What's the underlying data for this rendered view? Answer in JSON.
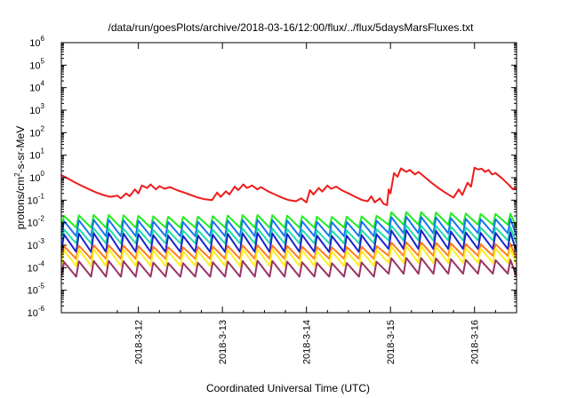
{
  "chart_data": {
    "type": "line",
    "title": "/data/run/goesPlots/archive/2018-03-16/12:00/flux/../flux/5daysMarsFluxes.txt",
    "xlabel": "Coordinated Universal Time (UTC)",
    "ylabel": {
      "main": "protons/cm",
      "sup": "2",
      "rest": "-s-sr-MeV"
    },
    "y_scale": "log",
    "ylim": [
      1e-06,
      1000000.0
    ],
    "y_ticks": [
      {
        "value": 1e-06,
        "base": "10",
        "exp": "-6"
      },
      {
        "value": 1e-05,
        "base": "10",
        "exp": "-5"
      },
      {
        "value": 0.0001,
        "base": "10",
        "exp": "-4"
      },
      {
        "value": 0.001,
        "base": "10",
        "exp": "-3"
      },
      {
        "value": 0.01,
        "base": "10",
        "exp": "-2"
      },
      {
        "value": 0.1,
        "base": "10",
        "exp": "-1"
      },
      {
        "value": 1.0,
        "base": "10",
        "exp": "0"
      },
      {
        "value": 10.0,
        "base": "10",
        "exp": "1"
      },
      {
        "value": 100.0,
        "base": "10",
        "exp": "2"
      },
      {
        "value": 1000.0,
        "base": "10",
        "exp": "3"
      },
      {
        "value": 10000.0,
        "base": "10",
        "exp": "4"
      },
      {
        "value": 100000.0,
        "base": "10",
        "exp": "5"
      },
      {
        "value": 1000000.0,
        "base": "10",
        "exp": "6"
      }
    ],
    "xlim": [
      "2018-03-11 02:00",
      "2018-03-16 12:00"
    ],
    "x_ticks": [
      {
        "value": "2018-03-12 00:00",
        "label": "2018-3-12"
      },
      {
        "value": "2018-03-13 00:00",
        "label": "2018-3-13"
      },
      {
        "value": "2018-03-14 00:00",
        "label": "2018-3-14"
      },
      {
        "value": "2018-03-15 00:00",
        "label": "2018-3-15"
      },
      {
        "value": "2018-03-16 00:00",
        "label": "2018-3-16"
      }
    ],
    "grid": false,
    "legend": "none",
    "series": [
      {
        "color": "#ee1c1c",
        "pattern": "none",
        "points": [
          [
            "2018-03-11 02:00",
            1.3
          ],
          [
            "2018-03-11 04:00",
            0.9
          ],
          [
            "2018-03-11 06:00",
            0.6
          ],
          [
            "2018-03-11 08:00",
            0.42
          ],
          [
            "2018-03-11 10:00",
            0.3
          ],
          [
            "2018-03-11 12:00",
            0.22
          ],
          [
            "2018-03-11 14:00",
            0.17
          ],
          [
            "2018-03-11 16:00",
            0.14
          ],
          [
            "2018-03-11 18:00",
            0.16
          ],
          [
            "2018-03-11 19:00",
            0.12
          ],
          [
            "2018-03-11 20:30",
            0.2
          ],
          [
            "2018-03-11 21:30",
            0.15
          ],
          [
            "2018-03-11 23:00",
            0.3
          ],
          [
            "2018-03-12 00:00",
            0.2
          ],
          [
            "2018-03-12 01:00",
            0.45
          ],
          [
            "2018-03-12 02:30",
            0.35
          ],
          [
            "2018-03-12 03:30",
            0.5
          ],
          [
            "2018-03-12 05:00",
            0.3
          ],
          [
            "2018-03-12 06:00",
            0.42
          ],
          [
            "2018-03-12 07:30",
            0.32
          ],
          [
            "2018-03-12 09:00",
            0.38
          ],
          [
            "2018-03-12 11:00",
            0.28
          ],
          [
            "2018-03-12 13:00",
            0.22
          ],
          [
            "2018-03-12 15:00",
            0.17
          ],
          [
            "2018-03-12 17:00",
            0.13
          ],
          [
            "2018-03-12 19:00",
            0.11
          ],
          [
            "2018-03-12 21:00",
            0.1
          ],
          [
            "2018-03-12 22:30",
            0.22
          ],
          [
            "2018-03-12 23:30",
            0.14
          ],
          [
            "2018-03-13 01:00",
            0.25
          ],
          [
            "2018-03-13 02:00",
            0.18
          ],
          [
            "2018-03-13 03:30",
            0.4
          ],
          [
            "2018-03-13 04:30",
            0.28
          ],
          [
            "2018-03-13 06:00",
            0.5
          ],
          [
            "2018-03-13 07:00",
            0.35
          ],
          [
            "2018-03-13 08:30",
            0.45
          ],
          [
            "2018-03-13 10:00",
            0.3
          ],
          [
            "2018-03-13 11:00",
            0.38
          ],
          [
            "2018-03-13 13:00",
            0.25
          ],
          [
            "2018-03-13 15:00",
            0.18
          ],
          [
            "2018-03-13 17:00",
            0.13
          ],
          [
            "2018-03-13 19:00",
            0.1
          ],
          [
            "2018-03-13 21:00",
            0.09
          ],
          [
            "2018-03-13 22:30",
            0.12
          ],
          [
            "2018-03-14 00:00",
            0.08
          ],
          [
            "2018-03-14 01:00",
            0.28
          ],
          [
            "2018-03-14 02:00",
            0.18
          ],
          [
            "2018-03-14 03:30",
            0.35
          ],
          [
            "2018-03-14 04:30",
            0.24
          ],
          [
            "2018-03-14 06:00",
            0.45
          ],
          [
            "2018-03-14 07:00",
            0.32
          ],
          [
            "2018-03-14 08:30",
            0.4
          ],
          [
            "2018-03-14 10:00",
            0.28
          ],
          [
            "2018-03-14 12:00",
            0.2
          ],
          [
            "2018-03-14 14:00",
            0.14
          ],
          [
            "2018-03-14 16:00",
            0.1
          ],
          [
            "2018-03-14 17:30",
            0.09
          ],
          [
            "2018-03-14 18:30",
            0.15
          ],
          [
            "2018-03-14 19:30",
            0.08
          ],
          [
            "2018-03-14 21:00",
            0.12
          ],
          [
            "2018-03-14 22:00",
            0.07
          ],
          [
            "2018-03-14 23:00",
            0.06
          ],
          [
            "2018-03-14 23:30",
            0.3
          ],
          [
            "2018-03-15 00:00",
            0.2
          ],
          [
            "2018-03-15 01:00",
            1.6
          ],
          [
            "2018-03-15 02:00",
            1.1
          ],
          [
            "2018-03-15 03:00",
            2.6
          ],
          [
            "2018-03-15 04:30",
            1.8
          ],
          [
            "2018-03-15 05:30",
            2.2
          ],
          [
            "2018-03-15 07:00",
            1.4
          ],
          [
            "2018-03-15 08:00",
            1.8
          ],
          [
            "2018-03-15 10:00",
            1.0
          ],
          [
            "2018-03-15 12:00",
            0.55
          ],
          [
            "2018-03-15 14:00",
            0.32
          ],
          [
            "2018-03-15 16:00",
            0.2
          ],
          [
            "2018-03-15 18:00",
            0.13
          ],
          [
            "2018-03-15 19:30",
            0.3
          ],
          [
            "2018-03-15 20:30",
            0.17
          ],
          [
            "2018-03-15 22:00",
            0.6
          ],
          [
            "2018-03-15 23:00",
            0.4
          ],
          [
            "2018-03-16 00:00",
            2.8
          ],
          [
            "2018-03-16 01:00",
            2.3
          ],
          [
            "2018-03-16 02:00",
            2.5
          ],
          [
            "2018-03-16 03:00",
            1.8
          ],
          [
            "2018-03-16 04:00",
            2.2
          ],
          [
            "2018-03-16 05:00",
            1.4
          ],
          [
            "2018-03-16 06:00",
            1.6
          ],
          [
            "2018-03-16 08:00",
            0.9
          ],
          [
            "2018-03-16 10:00",
            0.45
          ],
          [
            "2018-03-16 11:00",
            0.3
          ],
          [
            "2018-03-16 11:30",
            0.35
          ],
          [
            "2018-03-16 12:00",
            0.3
          ]
        ]
      },
      {
        "color": "#22ee22",
        "pattern": "sawtooth",
        "lo": 0.006,
        "hi": 0.02,
        "bump_day": 0,
        "bump_factor": 1.0
      },
      {
        "color": "#1a73f0",
        "pattern": "sawtooth",
        "lo": 0.0025,
        "hi": 0.012,
        "bump_day": 0,
        "bump_factor": 1.0
      },
      {
        "color": "#22ddaa",
        "pattern": "sawtooth",
        "lo": 0.0012,
        "hi": 0.005,
        "bump_day": 0,
        "bump_factor": 1.0
      },
      {
        "color": "#1a22cc",
        "pattern": "sawtooth",
        "lo": 0.0005,
        "hi": 0.003,
        "bump_day": 0,
        "bump_factor": 1.0
      },
      {
        "color": "#ff7a1a",
        "pattern": "sawtooth",
        "lo": 0.00025,
        "hi": 0.0009,
        "bump_day": 0,
        "bump_factor": 1.0
      },
      {
        "color": "#ffee22",
        "pattern": "sawtooth",
        "lo": 0.00012,
        "hi": 0.0006,
        "bump_day": 0,
        "bump_factor": 1.0
      },
      {
        "color": "#993366",
        "pattern": "sawtooth",
        "lo": 4e-05,
        "hi": 0.00018,
        "bump_day": 0,
        "bump_factor": 1.0
      }
    ]
  }
}
